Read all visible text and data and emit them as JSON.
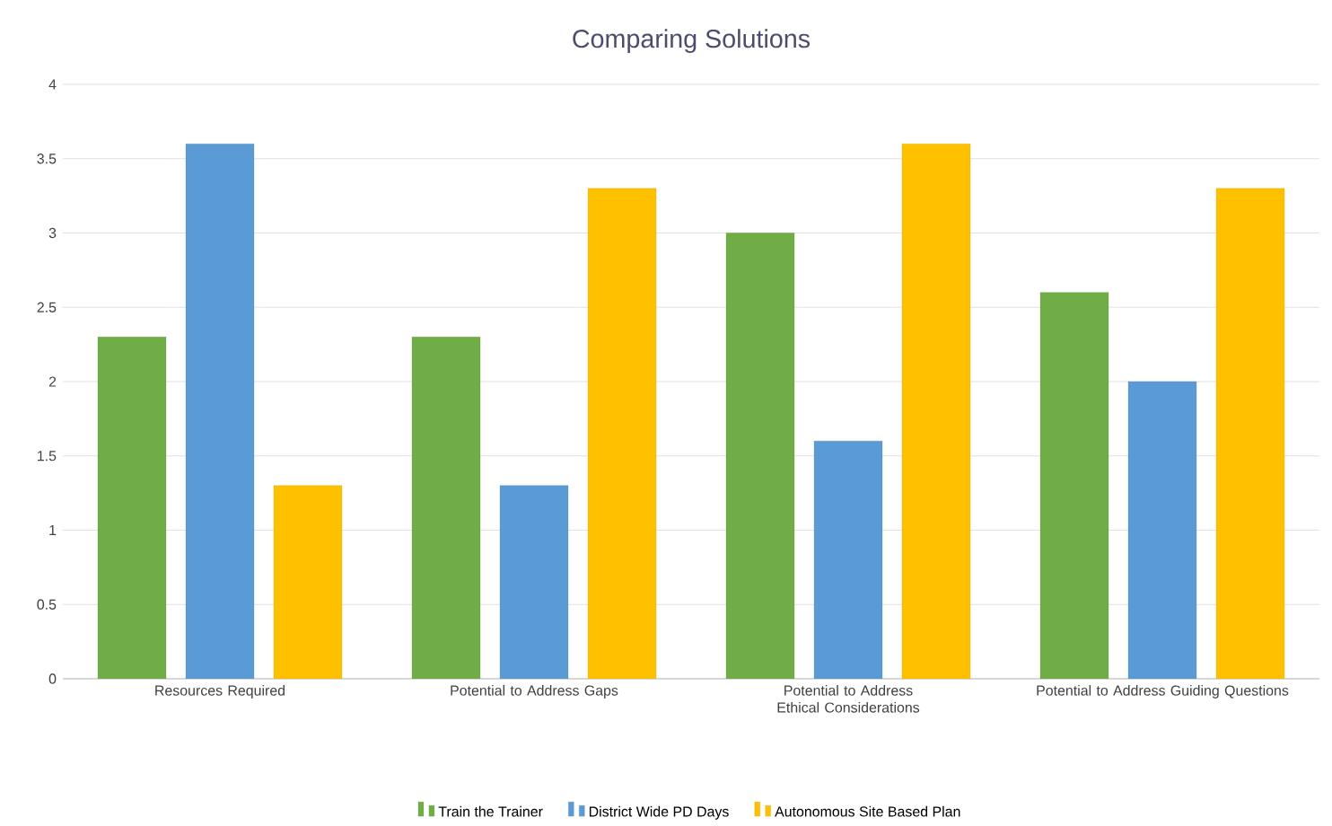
{
  "chart_data": {
    "type": "bar",
    "title": "Comparing Solutions",
    "categories": [
      "Resources Required",
      "Potential to Address Gaps",
      "Potential to Address Ethical Considerations",
      "Potential to Address Guiding Questions"
    ],
    "series": [
      {
        "name": "Train the Trainer",
        "color": "#70ad47",
        "values": [
          2.3,
          2.3,
          3.0,
          2.6
        ]
      },
      {
        "name": "District Wide PD Days",
        "color": "#5b9bd5",
        "values": [
          3.6,
          1.3,
          1.6,
          2.0
        ]
      },
      {
        "name": "Autonomous Site Based Plan",
        "color": "#ffc000",
        "values": [
          1.3,
          3.3,
          3.6,
          3.3
        ]
      }
    ],
    "ylim": [
      0,
      4
    ],
    "yticks": [
      0,
      0.5,
      1,
      1.5,
      2,
      2.5,
      3,
      3.5,
      4
    ],
    "grid": "y",
    "legend": "bottom"
  }
}
